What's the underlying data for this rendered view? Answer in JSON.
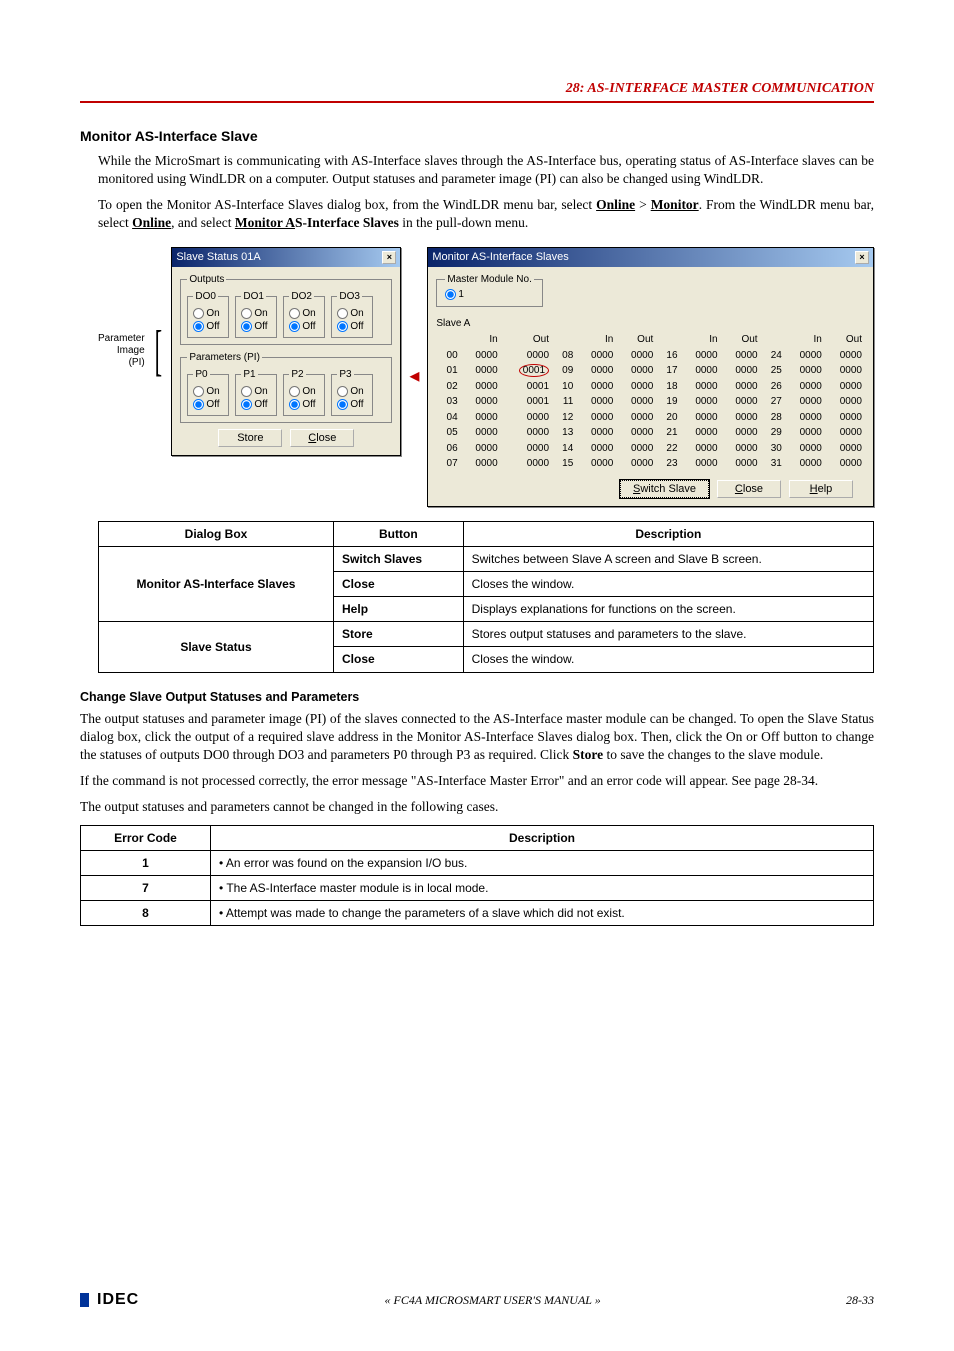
{
  "chapter": {
    "num": "28",
    "title": "AS-Interface Master Communication",
    "full": "28: AS-INTERFACE MASTER COMMUNICATION"
  },
  "section": {
    "heading": "Monitor AS-Interface Slave",
    "p1": "While the MicroSmart is communicating with AS-Interface slaves through the AS-Interface bus, operating status of AS-Interface slaves can be monitored using WindLDR on a computer. Output statuses and parameter image (PI) can also be changed using WindLDR.",
    "p2_pre": "To open the Monitor AS-Interface Slaves dialog box, from the WindLDR menu bar, select ",
    "p2_online": "Online",
    "p2_gt": " > ",
    "p2_monitor": "Monitor",
    "p2_mid": ". From the WindLDR menu bar, select ",
    "p2_online2": "Online",
    "p2_mid2": ", and select ",
    "p2_mas": "Monitor AS-Interface Slaves",
    "p2_end": " in the pull-down menu."
  },
  "pi_label": {
    "l1": "Parameter",
    "l2": "Image",
    "l3": "(PI)"
  },
  "slave_dialog": {
    "title": "Slave Status  01A",
    "outputs_legend": "Outputs",
    "do_groups": [
      "DO0",
      "DO1",
      "DO2",
      "DO3"
    ],
    "params_legend": "Parameters (PI)",
    "p_groups": [
      "P0",
      "P1",
      "P2",
      "P3"
    ],
    "radio_on": "On",
    "radio_off": "Off",
    "btn_store": "Store",
    "btn_close": "Close"
  },
  "monitor_dialog": {
    "title": "Monitor AS-Interface Slaves",
    "master_legend": "Master Module No.",
    "master_radio": "1",
    "slave_a": "Slave A",
    "hdr": [
      "In",
      "Out"
    ],
    "cols": 4,
    "rows": [
      [
        "00",
        "0000",
        "0000",
        "08",
        "0000",
        "0000",
        "16",
        "0000",
        "0000",
        "24",
        "0000",
        "0000"
      ],
      [
        "01",
        "0000",
        "0001",
        "09",
        "0000",
        "0000",
        "17",
        "0000",
        "0000",
        "25",
        "0000",
        "0000"
      ],
      [
        "02",
        "0000",
        "0001",
        "10",
        "0000",
        "0000",
        "18",
        "0000",
        "0000",
        "26",
        "0000",
        "0000"
      ],
      [
        "03",
        "0000",
        "0001",
        "11",
        "0000",
        "0000",
        "19",
        "0000",
        "0000",
        "27",
        "0000",
        "0000"
      ],
      [
        "04",
        "0000",
        "0000",
        "12",
        "0000",
        "0000",
        "20",
        "0000",
        "0000",
        "28",
        "0000",
        "0000"
      ],
      [
        "05",
        "0000",
        "0000",
        "13",
        "0000",
        "0000",
        "21",
        "0000",
        "0000",
        "29",
        "0000",
        "0000"
      ],
      [
        "06",
        "0000",
        "0000",
        "14",
        "0000",
        "0000",
        "22",
        "0000",
        "0000",
        "30",
        "0000",
        "0000"
      ],
      [
        "07",
        "0000",
        "0000",
        "15",
        "0000",
        "0000",
        "23",
        "0000",
        "0000",
        "31",
        "0000",
        "0000"
      ]
    ],
    "btn_switch": "Switch Slave",
    "btn_close": "Close",
    "btn_help": "Help",
    "circled_cell": [
      1,
      2
    ]
  },
  "desc_table": {
    "headers": [
      "Dialog Box",
      "Button",
      "Description"
    ],
    "rows": [
      {
        "db": "Monitor AS-Interface Slaves",
        "rowspan": 3,
        "btn": "Switch Slaves",
        "desc": "Switches between Slave A screen and Slave B screen."
      },
      {
        "btn": "Close",
        "desc": "Closes the window."
      },
      {
        "btn": "Help",
        "desc": "Displays explanations for functions on the screen."
      },
      {
        "db": "Slave Status",
        "rowspan": 2,
        "btn": "Store",
        "desc": "Stores output statuses and parameters to the slave."
      },
      {
        "btn": "Close",
        "desc": "Closes the window."
      }
    ]
  },
  "change": {
    "heading": "Change Slave Output Statuses and Parameters",
    "p1": "The output statuses and parameter image (PI) of the slaves connected to the AS-Interface master module can be changed. To open the Slave Status dialog box, click the output of a required slave address in the Monitor AS-Interface Slaves dialog box. Then, click the On or Off button to change the statuses of outputs DO0 through DO3 and parameters P0 through P3 as required. Click ",
    "p1_store": "Store",
    "p1_end": " to save the changes to the slave module.",
    "p2": "If the command is not processed correctly, the error message \"AS-Interface Master Error\" and an error code will appear. See page 28-34.",
    "p3": "The output statuses and parameters cannot be changed in the following cases."
  },
  "err_table": {
    "headers": [
      "Error Code",
      "Description"
    ],
    "rows": [
      {
        "code": "1",
        "desc": "• An error was found on the expansion I/O bus."
      },
      {
        "code": "7",
        "desc": "• The AS-Interface master module is in local mode."
      },
      {
        "code": "8",
        "desc": "• Attempt was made to change the parameters of a slave which did not exist."
      }
    ]
  },
  "footer": {
    "center": "« FC4A MICROSMART USER'S MANUAL »",
    "page": "28-33",
    "logo": "IDEC"
  }
}
